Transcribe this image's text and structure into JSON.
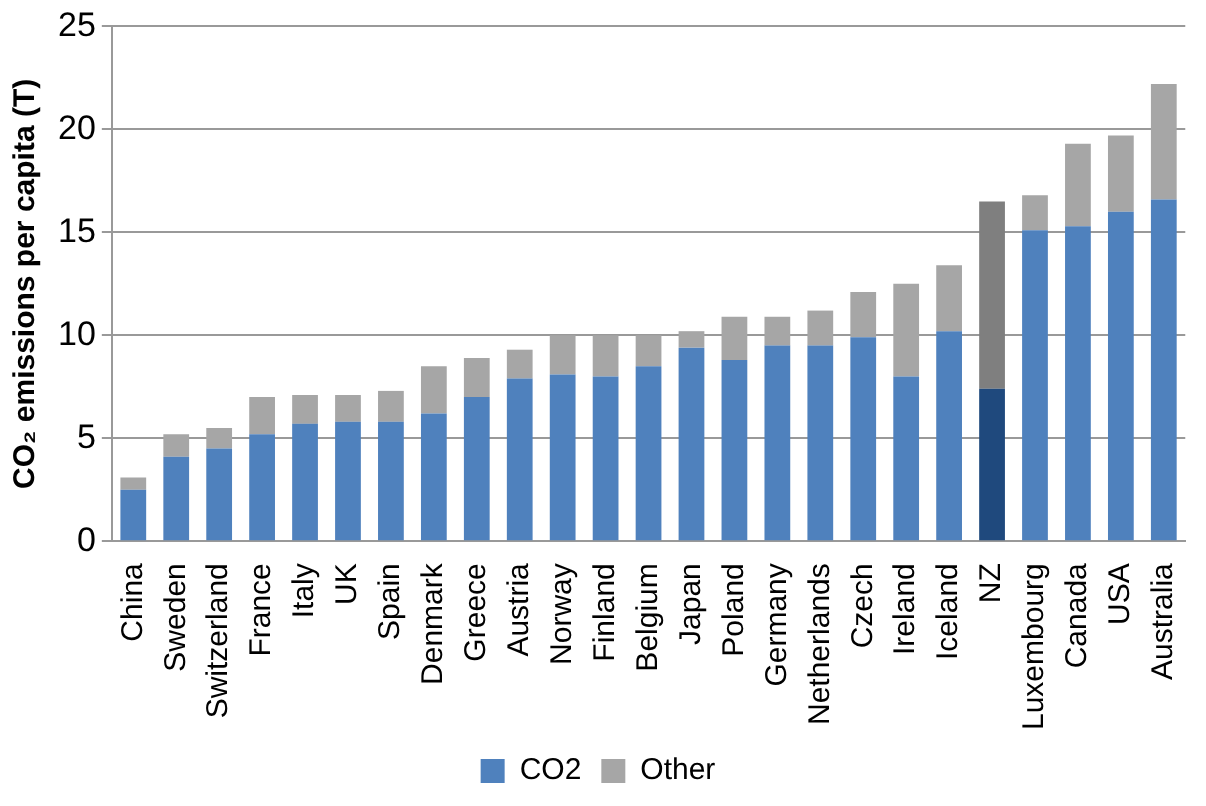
{
  "chart_data": {
    "type": "bar",
    "stacked": true,
    "ylabel": "CO₂ emissions per capita (T)",
    "categories": [
      "China",
      "Sweden",
      "Switzerland",
      "France",
      "Italy",
      "UK",
      "Spain",
      "Denmark",
      "Greece",
      "Austria",
      "Norway",
      "Finland",
      "Belgium",
      "Japan",
      "Poland",
      "Germany",
      "Netherlands",
      "Czech",
      "Ireland",
      "Iceland",
      "NZ",
      "Luxembourg",
      "Canada",
      "USA",
      "Australia"
    ],
    "series": [
      {
        "name": "CO2",
        "color": "#4f81bd",
        "colors": [
          "#4f81bd",
          "#4f81bd",
          "#4f81bd",
          "#4f81bd",
          "#4f81bd",
          "#4f81bd",
          "#4f81bd",
          "#4f81bd",
          "#4f81bd",
          "#4f81bd",
          "#4f81bd",
          "#4f81bd",
          "#4f81bd",
          "#4f81bd",
          "#4f81bd",
          "#4f81bd",
          "#4f81bd",
          "#4f81bd",
          "#4f81bd",
          "#4f81bd",
          "#1f497d",
          "#4f81bd",
          "#4f81bd",
          "#4f81bd",
          "#4f81bd"
        ],
        "values": [
          2.5,
          4.1,
          4.5,
          5.2,
          5.7,
          5.8,
          5.8,
          6.2,
          7.0,
          7.9,
          8.1,
          8.0,
          8.5,
          9.4,
          8.8,
          9.5,
          9.5,
          9.9,
          8.0,
          10.2,
          7.4,
          15.1,
          15.3,
          16.0,
          16.6
        ]
      },
      {
        "name": "Other",
        "color": "#a6a6a6",
        "colors": [
          "#a6a6a6",
          "#a6a6a6",
          "#a6a6a6",
          "#a6a6a6",
          "#a6a6a6",
          "#a6a6a6",
          "#a6a6a6",
          "#a6a6a6",
          "#a6a6a6",
          "#a6a6a6",
          "#a6a6a6",
          "#a6a6a6",
          "#a6a6a6",
          "#a6a6a6",
          "#a6a6a6",
          "#a6a6a6",
          "#a6a6a6",
          "#a6a6a6",
          "#a6a6a6",
          "#a6a6a6",
          "#7f7f7f",
          "#a6a6a6",
          "#a6a6a6",
          "#a6a6a6",
          "#a6a6a6"
        ],
        "values": [
          0.6,
          1.1,
          1.0,
          1.8,
          1.4,
          1.3,
          1.5,
          2.3,
          1.9,
          1.4,
          1.9,
          2.0,
          1.5,
          0.8,
          2.1,
          1.4,
          1.7,
          2.2,
          4.5,
          3.2,
          9.1,
          1.7,
          4.0,
          3.7,
          5.6
        ]
      }
    ],
    "ylim": [
      0,
      25
    ],
    "yticks": [
      0,
      5,
      10,
      15,
      20,
      25
    ],
    "grid": "y",
    "legend": "bottom"
  }
}
